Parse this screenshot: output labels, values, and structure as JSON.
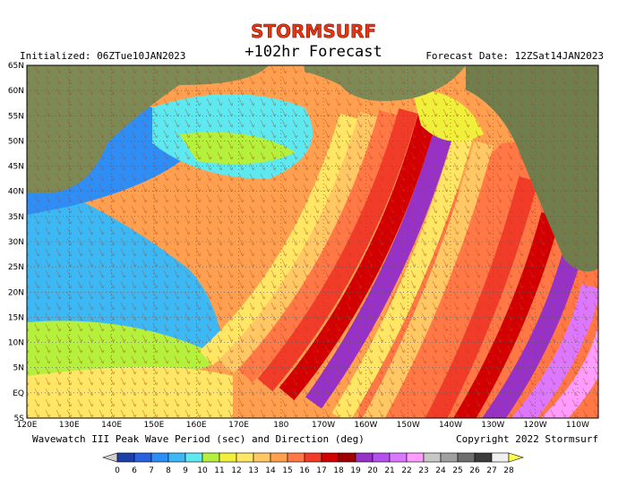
{
  "header": {
    "brand": "STORMSURF",
    "title": "+102hr Forecast",
    "initialized": "Initialized: 06ZTue10JAN2023",
    "forecast_date": "Forecast Date: 12ZSat14JAN2023"
  },
  "map": {
    "lat_labels": [
      "65N",
      "60N",
      "55N",
      "50N",
      "45N",
      "40N",
      "35N",
      "30N",
      "25N",
      "20N",
      "15N",
      "10N",
      "5N",
      "EQ",
      "5S"
    ],
    "lon_labels": [
      "120E",
      "130E",
      "140E",
      "150E",
      "160E",
      "170E",
      "180",
      "170W",
      "160W",
      "150W",
      "140W",
      "130W",
      "120W",
      "110W"
    ]
  },
  "footer": {
    "caption": "Wavewatch III Peak Wave Period (sec) and Direction (deg)",
    "copyright": "Copyright 2022 Stormsurf"
  },
  "colorbar": {
    "labels": [
      "0",
      "6",
      "7",
      "8",
      "9",
      "10",
      "11",
      "12",
      "13",
      "14",
      "15",
      "16",
      "17",
      "18",
      "19",
      "20",
      "21",
      "22",
      "23",
      "24",
      "25",
      "26",
      "27",
      "28"
    ],
    "colors": [
      "#d2d2d2",
      "#1c3fa8",
      "#2a5fe0",
      "#2f8ef5",
      "#3cb9f5",
      "#5ee8f0",
      "#b4f03c",
      "#f0f03c",
      "#ffe664",
      "#ffc864",
      "#ffa050",
      "#ff7846",
      "#f03c28",
      "#d20000",
      "#a00000",
      "#9632c8",
      "#b450f0",
      "#dc78ff",
      "#ff9cff",
      "#c8c8c8",
      "#a0a0a0",
      "#6e6e6e",
      "#3c3c3c",
      "#f0f0f0",
      "#ffff50"
    ]
  }
}
